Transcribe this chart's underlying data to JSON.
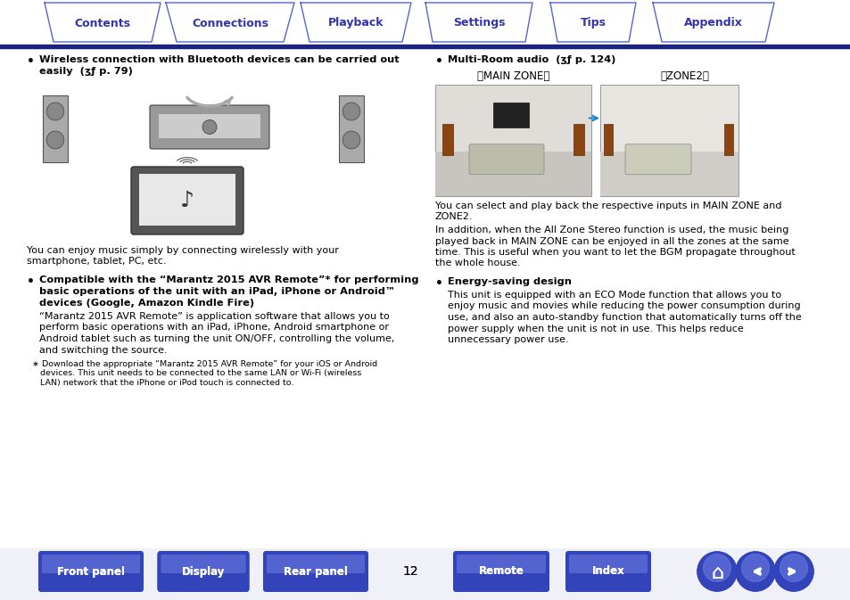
{
  "tab_labels": [
    "Contents",
    "Connections",
    "Playback",
    "Settings",
    "Tips",
    "Appendix"
  ],
  "tab_color": "#3333aa",
  "tab_border_color": "#5566cc",
  "background_color": "#ffffff",
  "header_line_color": "#1a237e",
  "bottom_btn_color_top": "#4455cc",
  "bottom_btn_color_bot": "#2233aa",
  "page_number": "12",
  "left_bullet1_line1": "Wireless connection with Bluetooth devices can be carried out",
  "left_bullet1_line2": "easily  (ʒƒ p. 79)",
  "left_img_caption_line1": "You can enjoy music simply by connecting wirelessly with your",
  "left_img_caption_line2": "smartphone, tablet, PC, etc.",
  "left_bullet2_bold_line1": "Compatible with the “Marantz 2015 AVR Remote”* for performing",
  "left_bullet2_bold_line2": "basic operations of the unit with an iPad, iPhone or Android™",
  "left_bullet2_bold_line3": "devices (Google, Amazon Kindle Fire)",
  "left_bullet2_body_line1": "“Marantz 2015 AVR Remote” is application software that allows you to",
  "left_bullet2_body_line2": "perform basic operations with an iPad, iPhone, Android smartphone or",
  "left_bullet2_body_line3": "Android tablet such as turning the unit ON/OFF, controlling the volume,",
  "left_bullet2_body_line4": "and switching the source.",
  "left_footnote_line1": "∗ Download the appropriate “Marantz 2015 AVR Remote” for your iOS or Android",
  "left_footnote_line2": "   devices. This unit needs to be connected to the same LAN or Wi-Fi (wireless",
  "left_footnote_line3": "   LAN) network that the iPhone or iPod touch is connected to.",
  "right_bullet1_line1": "Multi-Room audio  (ʒƒ p. 124)",
  "right_zone1_label": "［MAIN ZONE］",
  "right_zone2_label": "［ZONE2］",
  "right_cap1_line1": "You can select and play back the respective inputs in MAIN ZONE and",
  "right_cap1_line2": "ZONE2.",
  "right_cap2_line1": "In addition, when the All Zone Stereo function is used, the music being",
  "right_cap2_line2": "played back in MAIN ZONE can be enjoyed in all the zones at the same",
  "right_cap2_line3": "time. This is useful when you want to let the BGM propagate throughout",
  "right_cap2_line4": "the whole house.",
  "right_bullet2_bold": "Energy-saving design",
  "right_bullet2_body_line1": "This unit is equipped with an ECO Mode function that allows you to",
  "right_bullet2_body_line2": "enjoy music and movies while reducing the power consumption during",
  "right_bullet2_body_line3": "use, and also an auto-standby function that automatically turns off the",
  "right_bullet2_body_line4": "power supply when the unit is not in use. This helps reduce",
  "right_bullet2_body_line5": "unnecessary power use.",
  "btn_labels": [
    "Front panel",
    "Display",
    "Rear panel",
    "Remote",
    "Index"
  ],
  "btn_color": "#3344bb"
}
